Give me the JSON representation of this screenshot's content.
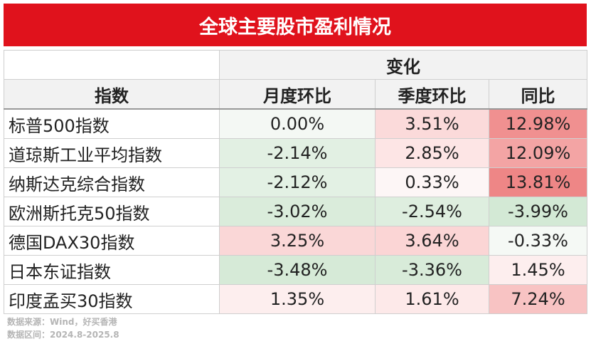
{
  "title": "全球主要股市盈利情况",
  "table": {
    "group_header": "变化",
    "columns": [
      "指数",
      "月度环比",
      "季度环比",
      "同比"
    ],
    "rows": [
      [
        "标普500指数",
        "0.00%",
        "3.51%",
        "12.98%"
      ],
      [
        "道琼斯工业平均指数",
        "-2.14%",
        "2.85%",
        "12.09%"
      ],
      [
        "纳斯达克综合指数",
        "-2.12%",
        "0.33%",
        "13.81%"
      ],
      [
        "欧洲斯托克50指数",
        "-3.02%",
        "-2.54%",
        "-3.99%"
      ],
      [
        "德国DAX30指数",
        "3.25%",
        "3.64%",
        "-0.33%"
      ],
      [
        "日本东证指数",
        "-3.48%",
        "-3.36%",
        "1.45%"
      ],
      [
        "印度孟买30指数",
        "1.35%",
        "1.61%",
        "7.24%"
      ]
    ],
    "cell_colors": [
      [
        "#ffffff",
        "#f4f8f4",
        "#fbdada",
        "#f09090"
      ],
      [
        "#ffffff",
        "#e2f0e3",
        "#fde5e5",
        "#f3a4a4"
      ],
      [
        "#ffffff",
        "#e3f1e4",
        "#fdf6f6",
        "#ee8686"
      ],
      [
        "#ffffff",
        "#daecdb",
        "#deeedf",
        "#d3e9d5"
      ],
      [
        "#ffffff",
        "#fad7d7",
        "#fbd5d5",
        "#f5f9f5"
      ],
      [
        "#ffffff",
        "#d6ead7",
        "#d8ebd9",
        "#fdeeee"
      ],
      [
        "#ffffff",
        "#fdeeee",
        "#fde9e9",
        "#f8c3c3"
      ]
    ]
  },
  "footer": [
    "数据来源：Wind，好买香港",
    "数据区间：2024.8-2025.8"
  ]
}
